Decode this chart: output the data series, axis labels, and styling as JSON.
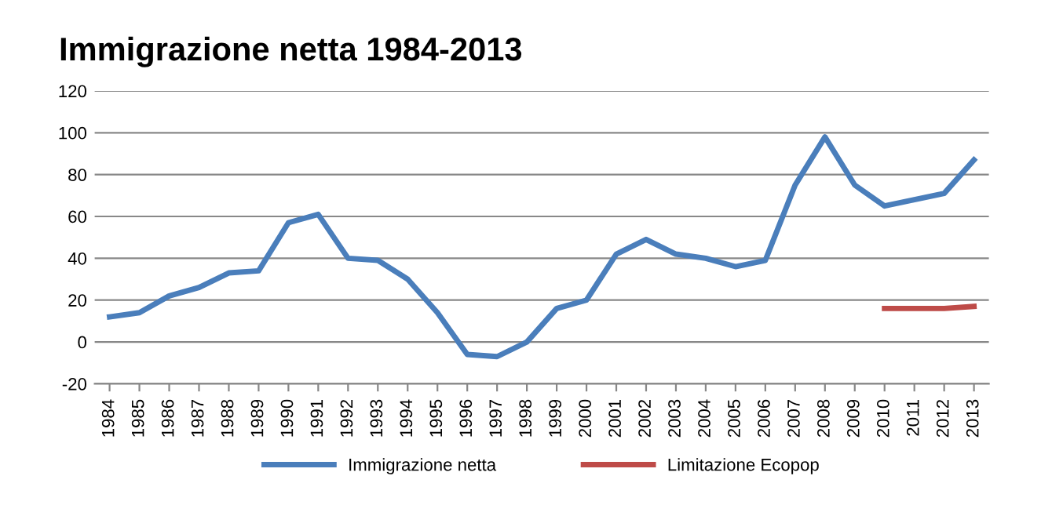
{
  "chart_data": {
    "type": "line",
    "title": "Immigrazione netta 1984-2013",
    "categories": [
      "1984",
      "1985",
      "1986",
      "1987",
      "1988",
      "1989",
      "1990",
      "1991",
      "1992",
      "1993",
      "1994",
      "1995",
      "1996",
      "1997",
      "1998",
      "1999",
      "2000",
      "2001",
      "2002",
      "2003",
      "2004",
      "2005",
      "2006",
      "2007",
      "2008",
      "2009",
      "2010",
      "2011",
      "2012",
      "2013"
    ],
    "series": [
      {
        "name": "Immigrazione netta",
        "color": "#4a7ebb",
        "values": [
          12,
          14,
          22,
          26,
          33,
          34,
          57,
          61,
          40,
          39,
          30,
          14,
          -6,
          -7,
          0,
          16,
          20,
          42,
          49,
          42,
          40,
          36,
          39,
          75,
          98,
          75,
          65,
          68,
          71,
          87
        ]
      },
      {
        "name": "Limitazione Ecopop",
        "color": "#be4b48",
        "values": [
          null,
          null,
          null,
          null,
          null,
          null,
          null,
          null,
          null,
          null,
          null,
          null,
          null,
          null,
          null,
          null,
          null,
          null,
          null,
          null,
          null,
          null,
          null,
          null,
          null,
          null,
          16,
          16,
          16,
          17
        ]
      }
    ],
    "ylim": [
      -20,
      120
    ],
    "yticks": [
      -20,
      0,
      20,
      40,
      60,
      80,
      100,
      120
    ],
    "grid": "y",
    "legend": "bottom",
    "marker": "none",
    "line_style": "solid"
  }
}
